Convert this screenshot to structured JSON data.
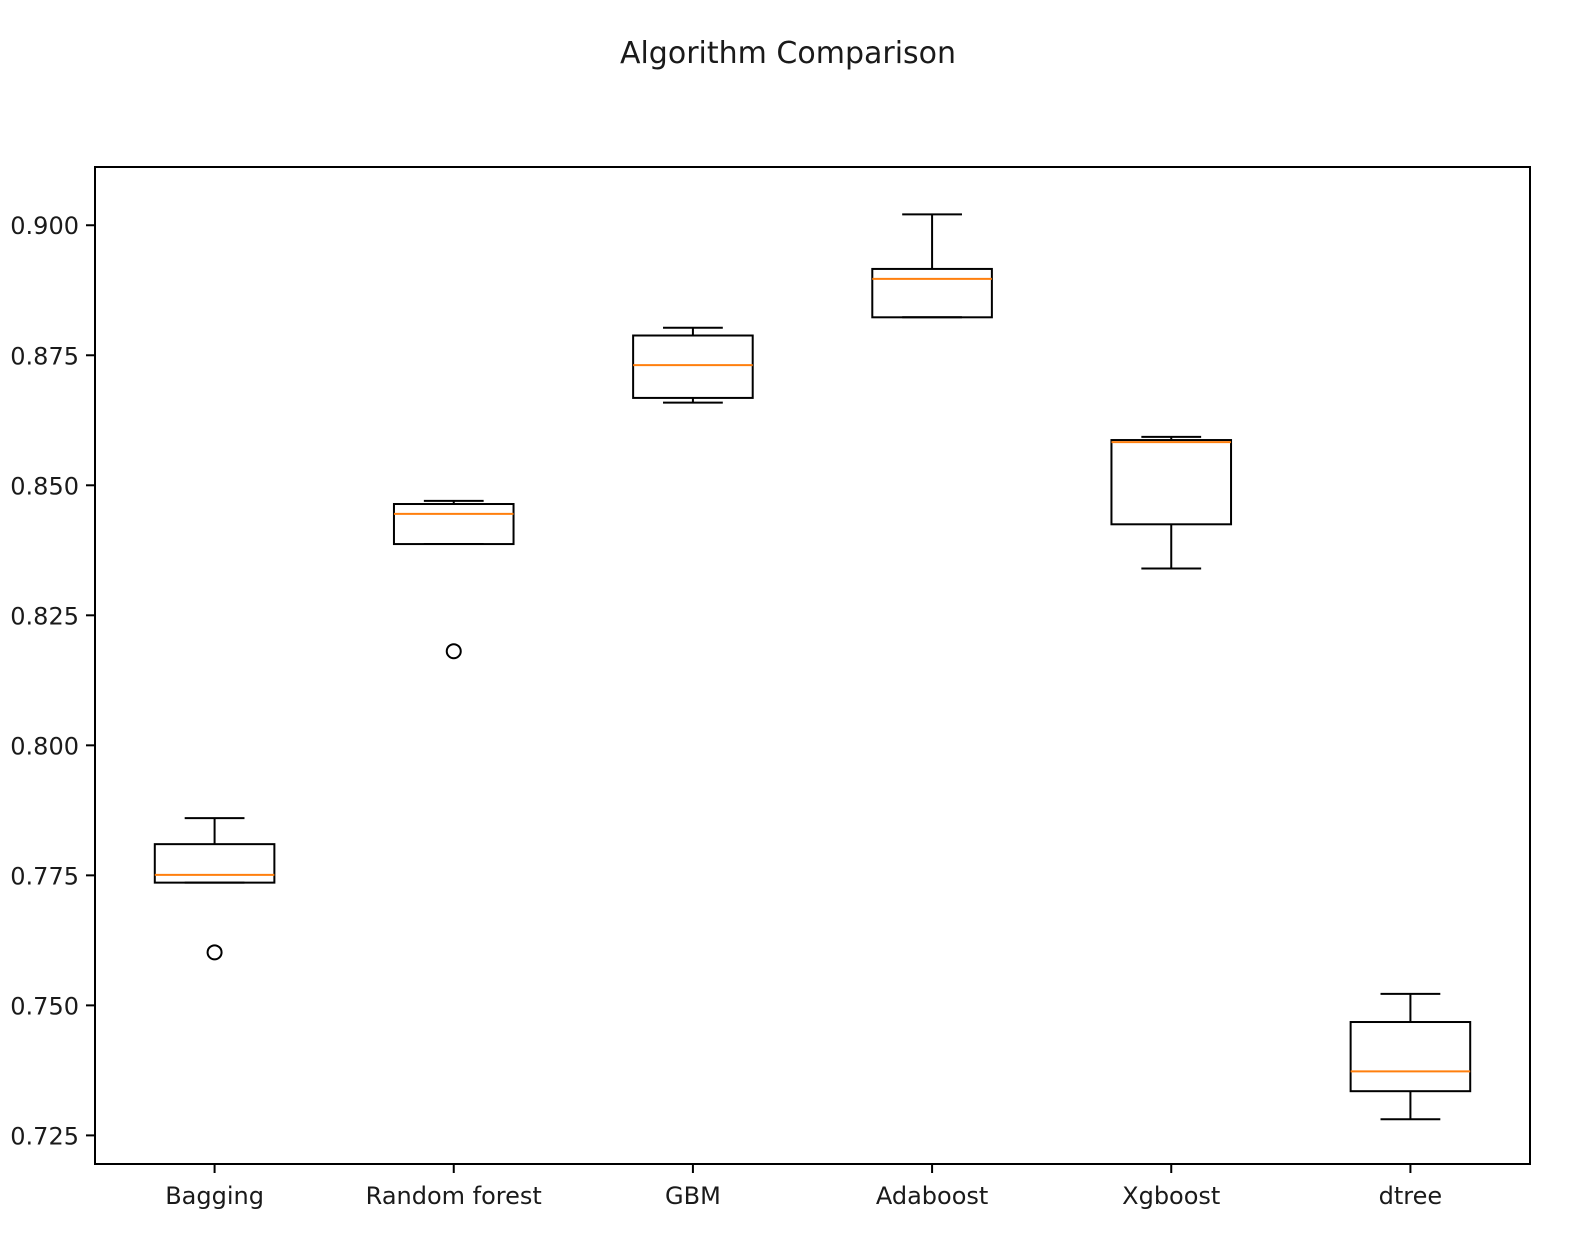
{
  "chart_data": {
    "type": "box",
    "title": "Algorithm Comparison",
    "xlabel": "",
    "ylabel": "",
    "ylim": [
      0.7195,
      0.9112
    ],
    "y_ticks": [
      0.725,
      0.75,
      0.775,
      0.8,
      0.825,
      0.85,
      0.875,
      0.9
    ],
    "y_tick_labels": [
      "0.725",
      "0.750",
      "0.775",
      "0.800",
      "0.825",
      "0.850",
      "0.875",
      "0.900"
    ],
    "categories": [
      "Bagging",
      "Random forest",
      "GBM",
      "Adaboost",
      "Xgboost",
      "dtree"
    ],
    "grid": false,
    "colors": {
      "box": "#000000",
      "median": "#ff7f0e",
      "axes": "#000000"
    },
    "boxes": [
      {
        "name": "Bagging",
        "whisker_low": 0.7736,
        "q1": 0.7736,
        "median": 0.7751,
        "q3": 0.781,
        "whisker_high": 0.786,
        "outliers": [
          0.7602
        ]
      },
      {
        "name": "Random forest",
        "whisker_low": 0.8387,
        "q1": 0.8387,
        "median": 0.8445,
        "q3": 0.8464,
        "whisker_high": 0.847,
        "outliers": [
          0.8181
        ]
      },
      {
        "name": "GBM",
        "whisker_low": 0.8659,
        "q1": 0.8668,
        "median": 0.8731,
        "q3": 0.8788,
        "whisker_high": 0.8803,
        "outliers": []
      },
      {
        "name": "Adaboost",
        "whisker_low": 0.8823,
        "q1": 0.8823,
        "median": 0.8897,
        "q3": 0.8916,
        "whisker_high": 0.9021,
        "outliers": []
      },
      {
        "name": "Xgboost",
        "whisker_low": 0.834,
        "q1": 0.8425,
        "median": 0.8583,
        "q3": 0.8587,
        "whisker_high": 0.8593,
        "outliers": []
      },
      {
        "name": "dtree",
        "whisker_low": 0.7281,
        "q1": 0.7335,
        "median": 0.7373,
        "q3": 0.7468,
        "whisker_high": 0.7522,
        "outliers": []
      }
    ]
  }
}
